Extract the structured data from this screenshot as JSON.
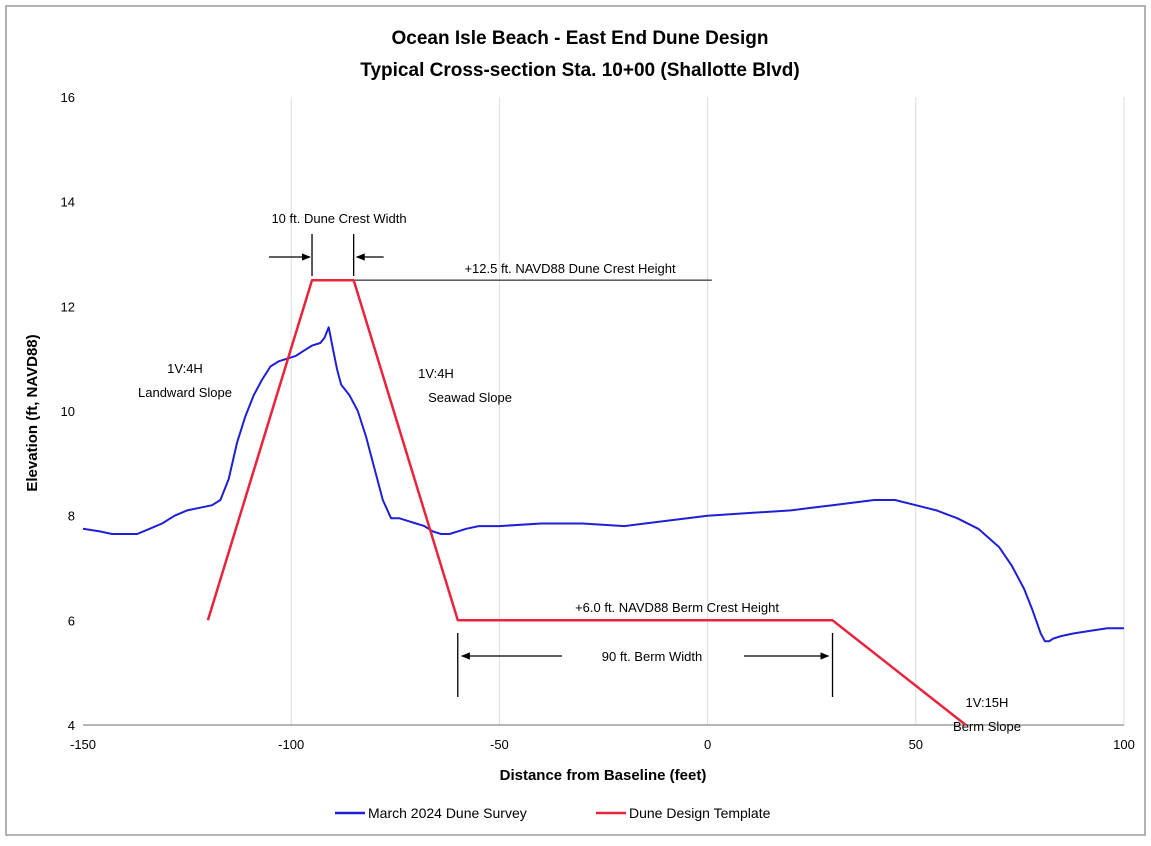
{
  "chart_data": {
    "type": "line",
    "title": "Ocean Isle Beach - East End Dune Design",
    "subtitle": "Typical Cross-section Sta. 10+00 (Shallotte Blvd)",
    "xlabel": "Distance from Baseline (feet)",
    "ylabel": "Elevation (ft, NAVD88)",
    "xlim": [
      -150,
      100
    ],
    "ylim": [
      4,
      16
    ],
    "xticks": [
      -150,
      -100,
      -50,
      0,
      50,
      100
    ],
    "yticks": [
      4,
      6,
      8,
      10,
      12,
      14,
      16
    ],
    "grid": "vertical",
    "legend_position": "bottom",
    "colors": {
      "survey": "#1f1fd6",
      "template": "#e8243c",
      "grid": "#dcdcdc",
      "annotation": "#000000"
    },
    "series": [
      {
        "name": "March 2024 Dune Survey",
        "x": [
          -150,
          -146,
          -143,
          -140,
          -137,
          -134,
          -131,
          -128,
          -125,
          -122,
          -119,
          -117,
          -115,
          -113,
          -111,
          -109,
          -107,
          -105,
          -103,
          -101,
          -99,
          -97,
          -95,
          -93,
          -92,
          -91,
          -90,
          -89,
          -88,
          -86,
          -84,
          -82,
          -80,
          -78,
          -76,
          -74,
          -72,
          -70,
          -68,
          -66,
          -64,
          -62,
          -60,
          -58,
          -55,
          -50,
          -40,
          -30,
          -20,
          -10,
          0,
          10,
          20,
          25,
          30,
          35,
          40,
          45,
          50,
          55,
          60,
          65,
          70,
          73,
          76,
          78,
          80,
          81,
          82,
          83,
          85,
          88,
          92,
          96,
          100
        ],
        "y": [
          7.75,
          7.7,
          7.65,
          7.65,
          7.65,
          7.75,
          7.85,
          8.0,
          8.1,
          8.15,
          8.2,
          8.3,
          8.7,
          9.4,
          9.9,
          10.3,
          10.6,
          10.85,
          10.95,
          11.0,
          11.05,
          11.15,
          11.25,
          11.3,
          11.4,
          11.6,
          11.2,
          10.8,
          10.5,
          10.3,
          10.0,
          9.5,
          8.9,
          8.3,
          7.95,
          7.95,
          7.9,
          7.85,
          7.8,
          7.7,
          7.65,
          7.65,
          7.7,
          7.75,
          7.8,
          7.8,
          7.85,
          7.85,
          7.8,
          7.9,
          8.0,
          8.05,
          8.1,
          8.15,
          8.2,
          8.25,
          8.3,
          8.3,
          8.2,
          8.1,
          7.95,
          7.75,
          7.4,
          7.05,
          6.6,
          6.2,
          5.75,
          5.6,
          5.6,
          5.65,
          5.7,
          5.75,
          5.8,
          5.85,
          5.85
        ]
      },
      {
        "name": "Dune Design Template",
        "x": [
          -120,
          -95,
          -85,
          -60,
          30,
          62
        ],
        "y": [
          6.0,
          12.5,
          12.5,
          6.0,
          6.0,
          3.87
        ]
      }
    ],
    "annotations": {
      "crest_width": "10 ft. Dune Crest Width",
      "crest_height": "+12.5 ft. NAVD88 Dune Crest Height",
      "landward_slope_1": "1V:4H",
      "landward_slope_2": "Landward Slope",
      "seaward_slope_1": "1V:4H",
      "seaward_slope_2": "Seawad Slope",
      "berm_height": "+6.0 ft. NAVD88 Berm Crest Height",
      "berm_width": "90 ft. Berm Width",
      "berm_slope_1": "1V:15H",
      "berm_slope_2": "Berm Slope"
    }
  }
}
